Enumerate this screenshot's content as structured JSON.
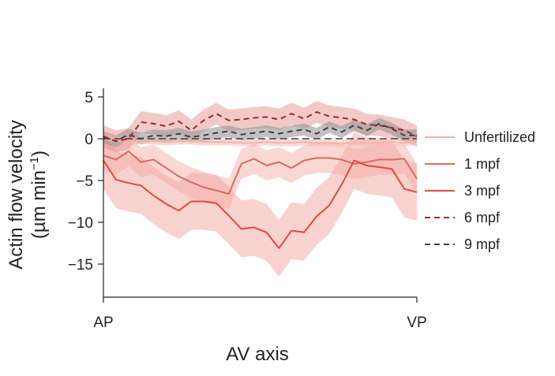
{
  "chart_data": {
    "type": "line",
    "xlabel": "AV axis",
    "ylabel_line1": "Actin flow velocity",
    "ylabel_line2_prefix": "(µm min",
    "ylabel_line2_sup": "−1",
    "ylabel_line2_suffix": ")",
    "x_tick_labels": [
      "AP",
      "VP"
    ],
    "y_ticks": [
      5,
      0,
      -5,
      -10,
      -15
    ],
    "y_tick_labels": [
      "5",
      "0",
      "−5",
      "−10",
      "−15"
    ],
    "xlim": [
      0,
      1
    ],
    "ylim": [
      -19,
      6
    ],
    "x": [
      0,
      0.04,
      0.08,
      0.12,
      0.16,
      0.2,
      0.24,
      0.28,
      0.32,
      0.36,
      0.4,
      0.44,
      0.48,
      0.52,
      0.56,
      0.6,
      0.64,
      0.68,
      0.72,
      0.76,
      0.8,
      0.84,
      0.88,
      0.92,
      0.96,
      1.0
    ],
    "series": [
      {
        "name": "Unfertilized",
        "color": "#f4b3aa",
        "dash": "solid",
        "values": [
          0.2,
          0.0,
          -0.3,
          -0.2,
          -0.3,
          -0.4,
          -0.3,
          -0.3,
          -0.4,
          -0.4,
          -0.4,
          -0.5,
          -0.5,
          -0.4,
          -0.5,
          -0.5,
          -0.4,
          -0.5,
          -0.5,
          -0.6,
          -0.4,
          -0.5,
          -0.5,
          -0.4,
          -0.5,
          -0.3
        ],
        "band": 0.4
      },
      {
        "name": "1 mpf",
        "color": "#d86b61",
        "dash": "solid",
        "values": [
          -2.0,
          -2.5,
          -1.5,
          -2.8,
          -2.5,
          -3.5,
          -4.5,
          -5.2,
          -5.8,
          -6.2,
          -6.6,
          -3.0,
          -2.4,
          -3.2,
          -2.8,
          -3.5,
          -2.6,
          -2.3,
          -2.3,
          -2.5,
          -3.0,
          -2.8,
          -2.5,
          -2.5,
          -2.4,
          -4.8
        ],
        "band": 1.8
      },
      {
        "name": "3 mpf",
        "color": "#e4493c",
        "dash": "solid",
        "values": [
          -2.6,
          -4.9,
          -5.3,
          -5.6,
          -6.8,
          -7.8,
          -8.6,
          -7.5,
          -7.5,
          -7.7,
          -9.2,
          -10.8,
          -10.6,
          -11.2,
          -13.1,
          -11.0,
          -11.2,
          -9.3,
          -8.0,
          -5.5,
          -2.6,
          -3.2,
          -3.4,
          -3.6,
          -6.0,
          -6.4
        ],
        "band": 3.4
      },
      {
        "name": "6 mpf",
        "color": "#a8262b",
        "dash": "dashed",
        "values": [
          0.3,
          -0.3,
          0.0,
          2.0,
          1.8,
          1.5,
          2.1,
          1.0,
          2.2,
          3.0,
          2.2,
          2.3,
          2.5,
          2.6,
          2.3,
          3.0,
          2.4,
          3.2,
          2.7,
          2.5,
          2.3,
          1.7,
          1.6,
          1.3,
          1.0,
          0.3
        ],
        "band": 1.3
      },
      {
        "name": "9 mpf",
        "color": "#404040",
        "dash": "dashed",
        "values": [
          0.2,
          -0.3,
          0.5,
          0.0,
          0.4,
          0.3,
          0.6,
          0.2,
          0.4,
          0.7,
          0.9,
          0.5,
          0.7,
          0.9,
          0.6,
          0.9,
          1.1,
          0.6,
          1.4,
          0.8,
          1.6,
          1.0,
          1.8,
          1.2,
          0.4,
          0.4
        ],
        "band": 0.7
      }
    ],
    "legend_position": "right",
    "grid": false
  }
}
